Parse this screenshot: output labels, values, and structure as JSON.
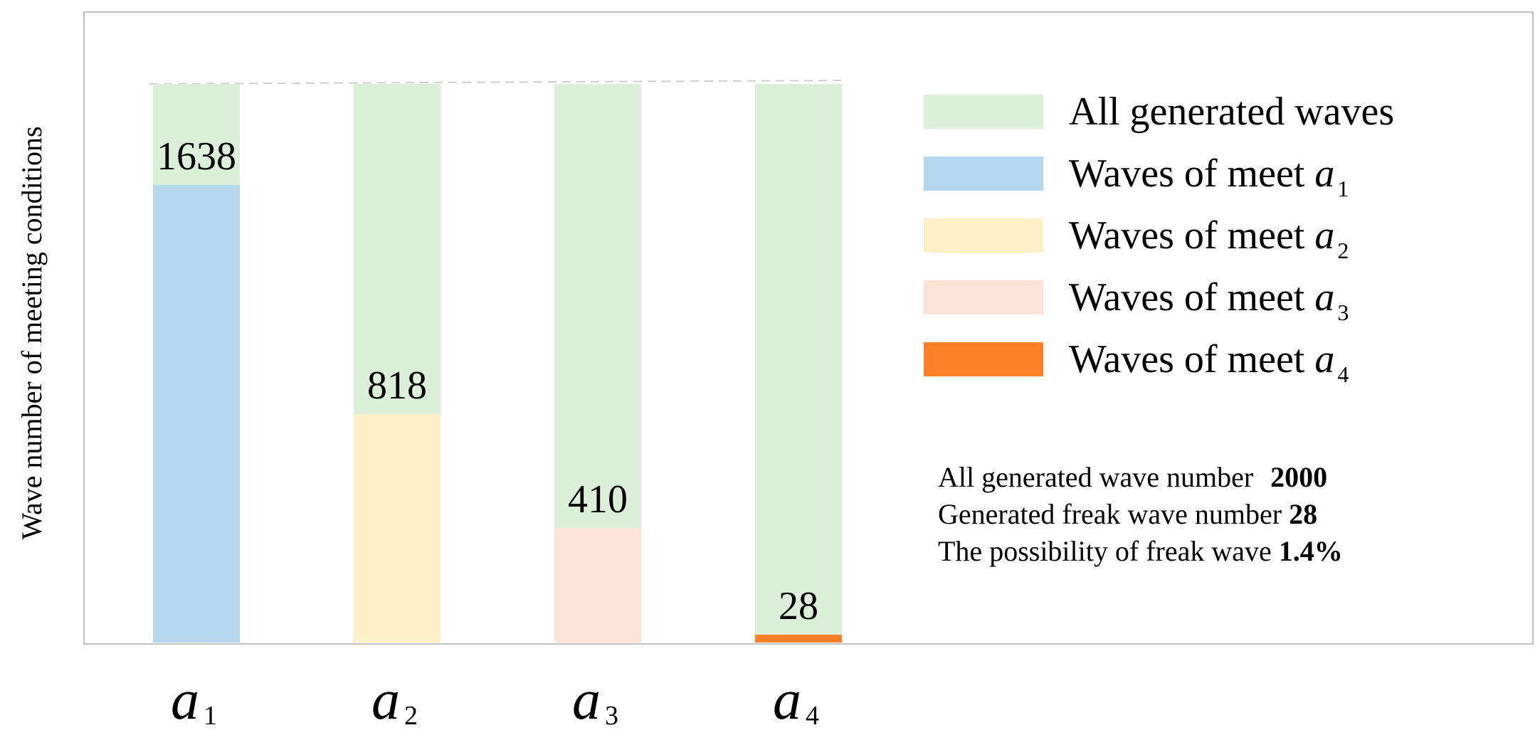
{
  "chart_data": {
    "type": "bar",
    "ylabel": "Wave number of meeting conditions",
    "ylim": [
      0,
      2000
    ],
    "grid": false,
    "legend_position": "right",
    "categories": [
      {
        "base": "a",
        "sub": "1"
      },
      {
        "base": "a",
        "sub": "2"
      },
      {
        "base": "a",
        "sub": "3"
      },
      {
        "base": "a",
        "sub": "4"
      }
    ],
    "total": 2000,
    "series": [
      {
        "name": "All generated waves",
        "values": [
          2000,
          2000,
          2000,
          2000
        ],
        "color": "#dcefd9"
      },
      {
        "name": "Waves of meet",
        "name_sym": "a",
        "name_sub": "1",
        "values": [
          1638,
          null,
          null,
          null
        ],
        "color": "#b5d7ee"
      },
      {
        "name": "Waves of meet",
        "name_sym": "a",
        "name_sub": "2",
        "values": [
          null,
          818,
          null,
          null
        ],
        "color": "#fdf0c8"
      },
      {
        "name": "Waves of meet",
        "name_sym": "a",
        "name_sub": "3",
        "values": [
          null,
          null,
          410,
          null
        ],
        "color": "#fde3d7"
      },
      {
        "name": "Waves of meet",
        "name_sym": "a",
        "name_sub": "4",
        "values": [
          null,
          null,
          null,
          28
        ],
        "color": "#fd7f28"
      }
    ],
    "data_labels": [
      "1638",
      "818",
      "410",
      "28"
    ],
    "annotations": [
      {
        "text": "All generated wave number ",
        "value": "2000"
      },
      {
        "text": "Generated freak wave number ",
        "value": "28"
      },
      {
        "text": "The possibility of freak wave ",
        "value": "1.4%"
      }
    ]
  }
}
